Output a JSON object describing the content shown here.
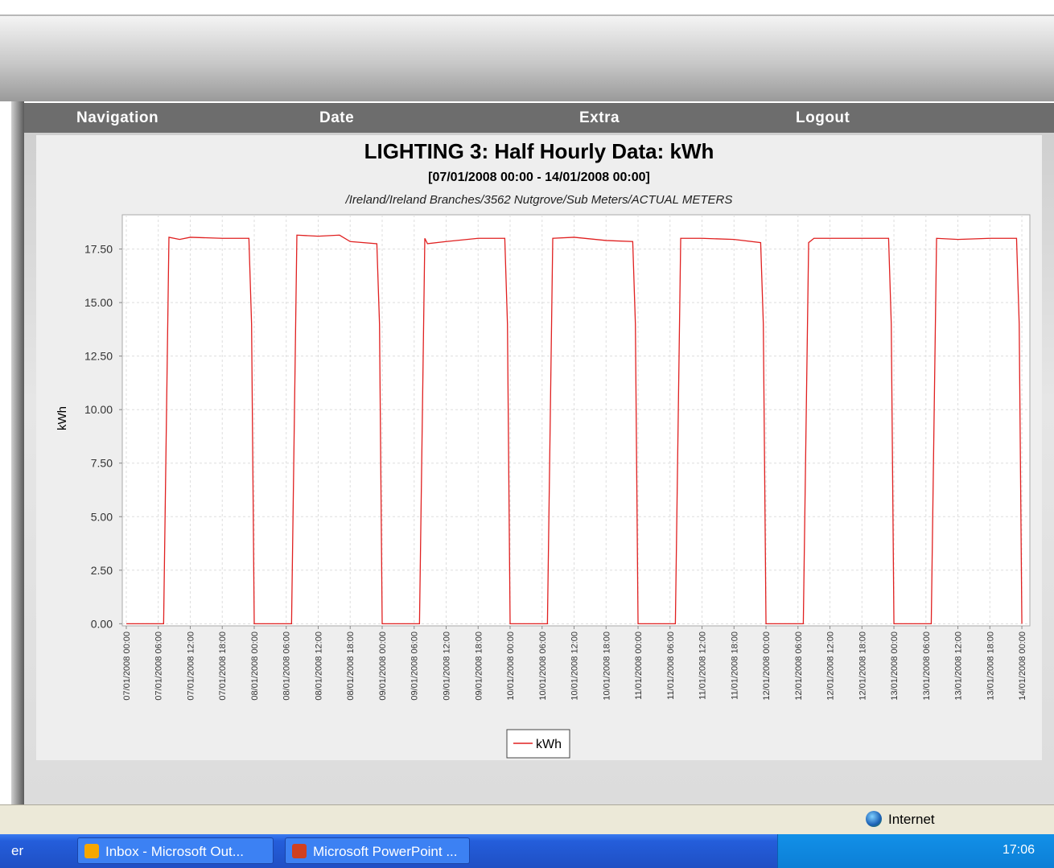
{
  "menu": [
    "Navigation",
    "Date",
    "Extra",
    "Logout"
  ],
  "status": {
    "zone": "Internet"
  },
  "taskbar": {
    "start_fragment": "er",
    "tasks": [
      "Inbox - Microsoft Out...",
      "Microsoft PowerPoint ..."
    ],
    "clock": "17:06"
  },
  "chart_data": {
    "type": "line",
    "title": "LIGHTING 3: Half Hourly Data: kWh",
    "subtitle": "[07/01/2008 00:00 - 14/01/2008 00:00]",
    "annotation": "/Ireland/Ireland Branches/3562 Nutgrove/Sub Meters/ACTUAL METERS",
    "y_label": "kWh",
    "x": [
      "07/01/2008 00:00",
      "07/01/2008 07:00",
      "07/01/2008 08:00",
      "07/01/2008 10:00",
      "07/01/2008 12:00",
      "07/01/2008 18:00",
      "07/01/2008 23:00",
      "07/01/2008 23:30",
      "08/01/2008 00:00",
      "08/01/2008 07:00",
      "08/01/2008 08:00",
      "08/01/2008 12:00",
      "08/01/2008 16:00",
      "08/01/2008 18:00",
      "08/01/2008 23:00",
      "08/01/2008 23:30",
      "09/01/2008 00:00",
      "09/01/2008 07:00",
      "09/01/2008 08:00",
      "09/01/2008 08:30",
      "09/01/2008 12:00",
      "09/01/2008 18:00",
      "09/01/2008 23:00",
      "09/01/2008 23:30",
      "10/01/2008 00:00",
      "10/01/2008 07:00",
      "10/01/2008 08:00",
      "10/01/2008 12:00",
      "10/01/2008 18:00",
      "10/01/2008 23:00",
      "10/01/2008 23:30",
      "11/01/2008 00:00",
      "11/01/2008 07:00",
      "11/01/2008 08:00",
      "11/01/2008 12:00",
      "11/01/2008 18:00",
      "11/01/2008 23:00",
      "11/01/2008 23:30",
      "12/01/2008 00:00",
      "12/01/2008 07:00",
      "12/01/2008 08:00",
      "12/01/2008 09:00",
      "12/01/2008 12:00",
      "12/01/2008 18:00",
      "12/01/2008 23:00",
      "12/01/2008 23:30",
      "13/01/2008 00:00",
      "13/01/2008 07:00",
      "13/01/2008 08:00",
      "13/01/2008 12:00",
      "13/01/2008 18:00",
      "13/01/2008 23:00",
      "13/01/2008 23:30",
      "14/01/2008 00:00"
    ],
    "series": [
      {
        "name": "kWh",
        "color": "#e02020",
        "values": [
          0,
          0,
          18.05,
          17.95,
          18.05,
          18.0,
          18.0,
          14.0,
          0,
          0,
          18.15,
          18.1,
          18.15,
          17.85,
          17.75,
          14.0,
          0,
          0,
          18.0,
          17.75,
          17.85,
          18.0,
          18.0,
          14.0,
          0,
          0,
          18.0,
          18.05,
          17.9,
          17.85,
          14.0,
          0,
          0,
          18.0,
          18.0,
          17.95,
          17.8,
          14.0,
          0,
          0,
          17.8,
          18.0,
          18.0,
          18.0,
          18.0,
          14.0,
          0,
          0,
          18.0,
          17.95,
          18.0,
          18.0,
          14.0,
          0
        ]
      }
    ],
    "xlim": [
      "06/01/2008 23:15",
      "14/01/2008 01:30"
    ],
    "xticks": [
      "07/01/2008 00:00",
      "07/01/2008 06:00",
      "07/01/2008 12:00",
      "07/01/2008 18:00",
      "08/01/2008 00:00",
      "08/01/2008 06:00",
      "08/01/2008 12:00",
      "08/01/2008 18:00",
      "09/01/2008 00:00",
      "09/01/2008 06:00",
      "09/01/2008 12:00",
      "09/01/2008 18:00",
      "10/01/2008 00:00",
      "10/01/2008 06:00",
      "10/01/2008 12:00",
      "10/01/2008 18:00",
      "11/01/2008 00:00",
      "11/01/2008 06:00",
      "11/01/2008 12:00",
      "11/01/2008 18:00",
      "12/01/2008 00:00",
      "12/01/2008 06:00",
      "12/01/2008 12:00",
      "12/01/2008 18:00",
      "13/01/2008 00:00",
      "13/01/2008 06:00",
      "13/01/2008 12:00",
      "13/01/2008 18:00",
      "14/01/2008 00:00"
    ],
    "ylim": [
      -0.1,
      19.1
    ],
    "yticks": [
      {
        "value": 0,
        "label": "0.00"
      },
      {
        "value": 2.5,
        "label": "2.50"
      },
      {
        "value": 5,
        "label": "5.00"
      },
      {
        "value": 7.5,
        "label": "7.50"
      },
      {
        "value": 10,
        "label": "10.00"
      },
      {
        "value": 12.5,
        "label": "12.50"
      },
      {
        "value": 15,
        "label": "15.00"
      },
      {
        "value": 17.5,
        "label": "17.50"
      }
    ],
    "grid": true,
    "legend": "bottom"
  }
}
